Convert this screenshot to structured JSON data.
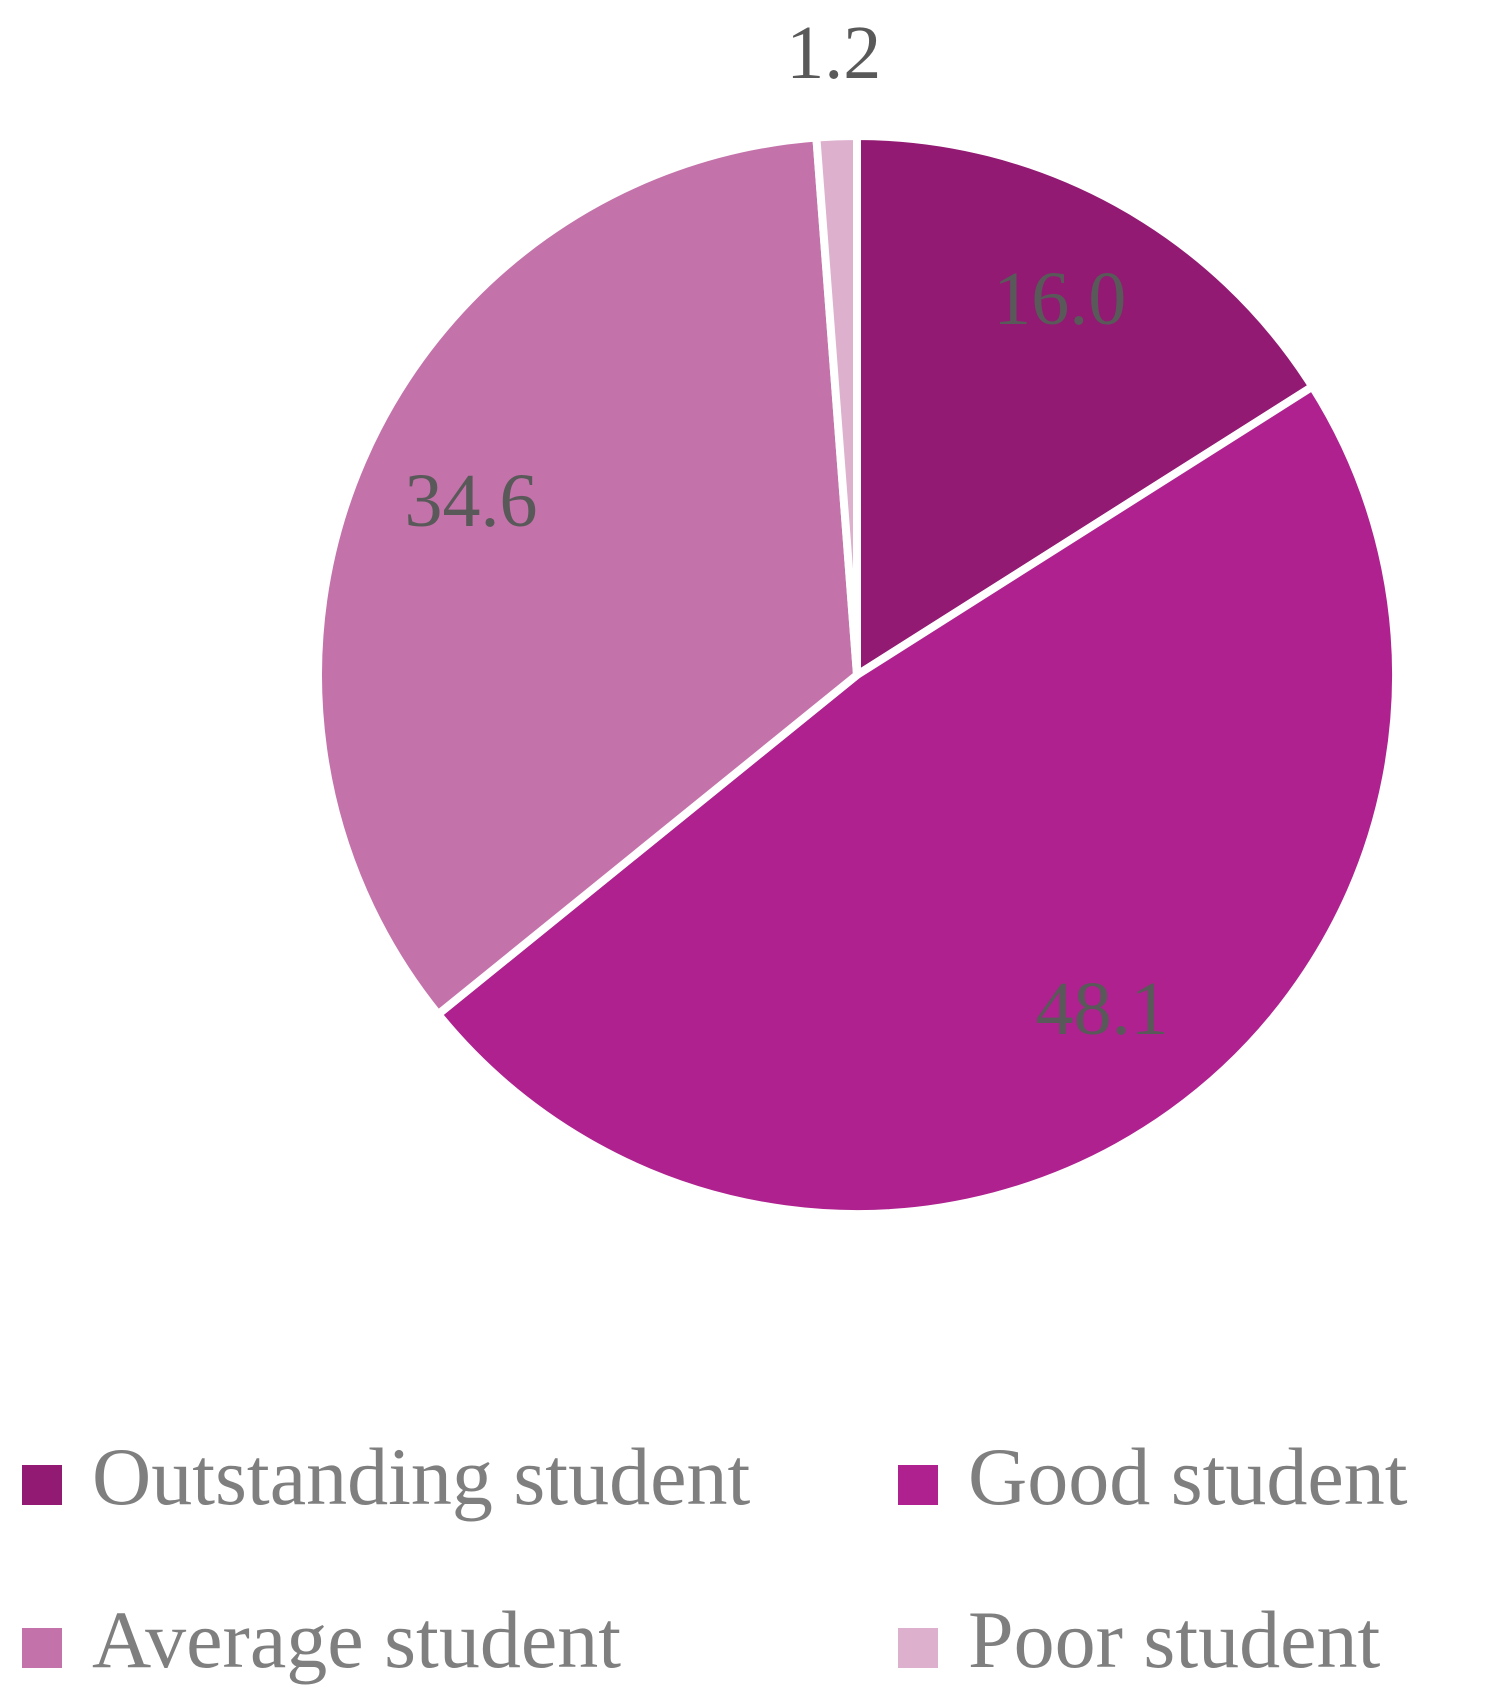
{
  "chart_data": {
    "type": "pie",
    "categories": [
      "Outstanding student",
      "Good student",
      "Average student",
      "Poor student"
    ],
    "values": [
      16.0,
      48.1,
      34.6,
      1.2
    ],
    "value_labels": [
      "16.0",
      "48.1",
      "34.6",
      "1.2"
    ],
    "colors": [
      "#921a72",
      "#ae218e",
      "#c472aa",
      "#ddb0cd"
    ],
    "start_angle": 0,
    "direction": "clockwise",
    "legend": "bottom"
  }
}
